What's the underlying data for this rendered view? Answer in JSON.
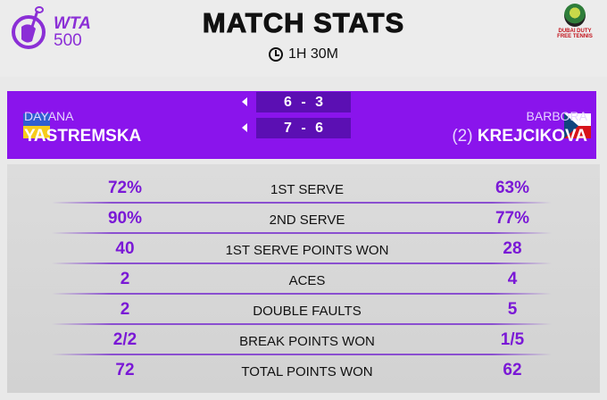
{
  "header": {
    "logo_text": "WTA",
    "logo_tier": "500",
    "title": "MATCH STATS",
    "duration": "1H 30M",
    "sponsor_text": "DUBAI DUTY FREE TENNIS"
  },
  "colors": {
    "accent": "#8a14ec",
    "value": "#7a18d6",
    "score_box": "#5b0fb3"
  },
  "players": [
    {
      "first": "DAYANA",
      "last": "YASTREMSKA",
      "flag": "ukraine",
      "seed": ""
    },
    {
      "first": "BARBORA",
      "last": "KREJCIKOVA",
      "flag": "czech-republic",
      "seed": "(2)"
    }
  ],
  "sets": [
    {
      "score": "6 - 3"
    },
    {
      "score": "7 - 6"
    }
  ],
  "stats": [
    {
      "label": "1ST SERVE",
      "left": "72%",
      "right": "63%"
    },
    {
      "label": "2ND SERVE",
      "left": "90%",
      "right": "77%"
    },
    {
      "label": "1ST SERVE POINTS WON",
      "left": "40",
      "right": "28"
    },
    {
      "label": "ACES",
      "left": "2",
      "right": "4"
    },
    {
      "label": "DOUBLE FAULTS",
      "left": "2",
      "right": "5"
    },
    {
      "label": "BREAK POINTS WON",
      "left": "2/2",
      "right": "1/5"
    },
    {
      "label": "TOTAL POINTS WON",
      "left": "72",
      "right": "62"
    }
  ]
}
